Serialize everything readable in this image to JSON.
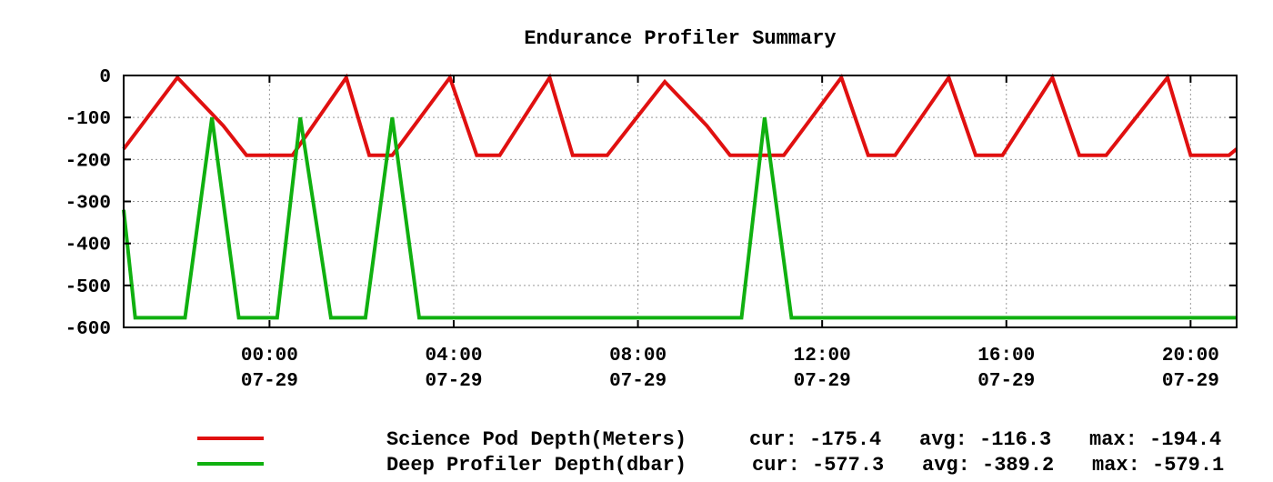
{
  "chart_data": {
    "type": "line",
    "title": "Endurance Profiler Summary",
    "xlabel": "",
    "ylabel": "",
    "ylim": [
      -600,
      0
    ],
    "xlim": [
      "07-28 20:50",
      "07-29 21:00"
    ],
    "grid": true,
    "legend_placement": "bottom",
    "y_ticks": [
      "0",
      "-100",
      "-200",
      "-300",
      "-400",
      "-500",
      "-600"
    ],
    "x_ticks": [
      {
        "time": "00:00",
        "date": "07-29"
      },
      {
        "time": "04:00",
        "date": "07-29"
      },
      {
        "time": "08:00",
        "date": "07-29"
      },
      {
        "time": "12:00",
        "date": "07-29"
      },
      {
        "time": "16:00",
        "date": "07-29"
      },
      {
        "time": "20:00",
        "date": "07-29"
      }
    ],
    "series": [
      {
        "name": "Science Pod Depth(Meters)",
        "color": "#e01010",
        "stats": {
          "cur": "cur: -175.4",
          "avg": "avg: -116.3",
          "max": "max: -194.4"
        },
        "points": [
          [
            "07-28 20:50",
            -175
          ],
          [
            "07-28 22:00",
            -5
          ],
          [
            "07-28 23:00",
            -120
          ],
          [
            "07-28 23:30",
            -190
          ],
          [
            "07-29 00:30",
            -190
          ],
          [
            "07-29 01:40",
            -5
          ],
          [
            "07-29 02:10",
            -190
          ],
          [
            "07-29 02:40",
            -190
          ],
          [
            "07-29 03:55",
            -5
          ],
          [
            "07-29 04:30",
            -190
          ],
          [
            "07-29 05:00",
            -190
          ],
          [
            "07-29 06:05",
            -5
          ],
          [
            "07-29 06:35",
            -190
          ],
          [
            "07-29 07:20",
            -190
          ],
          [
            "07-29 08:35",
            -15
          ],
          [
            "07-29 09:30",
            -120
          ],
          [
            "07-29 10:00",
            -190
          ],
          [
            "07-29 11:10",
            -190
          ],
          [
            "07-29 12:25",
            -5
          ],
          [
            "07-29 13:00",
            -190
          ],
          [
            "07-29 13:35",
            -190
          ],
          [
            "07-29 14:45",
            -5
          ],
          [
            "07-29 15:20",
            -190
          ],
          [
            "07-29 15:55",
            -190
          ],
          [
            "07-29 17:00",
            -5
          ],
          [
            "07-29 17:35",
            -190
          ],
          [
            "07-29 18:10",
            -190
          ],
          [
            "07-29 19:30",
            -5
          ],
          [
            "07-29 20:00",
            -190
          ],
          [
            "07-29 20:50",
            -190
          ],
          [
            "07-29 21:00",
            -175
          ]
        ]
      },
      {
        "name": "Deep Profiler Depth(dbar)",
        "color": "#10b010",
        "stats": {
          "cur": "cur: -577.3",
          "avg": "avg: -389.2",
          "max": "max: -579.1"
        },
        "points": [
          [
            "07-28 20:50",
            -320
          ],
          [
            "07-28 21:05",
            -577
          ],
          [
            "07-28 22:10",
            -577
          ],
          [
            "07-28 22:45",
            -100
          ],
          [
            "07-28 23:20",
            -577
          ],
          [
            "07-29 00:10",
            -577
          ],
          [
            "07-29 00:40",
            -100
          ],
          [
            "07-29 01:20",
            -577
          ],
          [
            "07-29 02:05",
            -577
          ],
          [
            "07-29 02:40",
            -100
          ],
          [
            "07-29 03:15",
            -577
          ],
          [
            "07-29 10:15",
            -577
          ],
          [
            "07-29 10:45",
            -100
          ],
          [
            "07-29 11:20",
            -577
          ],
          [
            "07-29 21:00",
            -577
          ]
        ]
      }
    ]
  }
}
